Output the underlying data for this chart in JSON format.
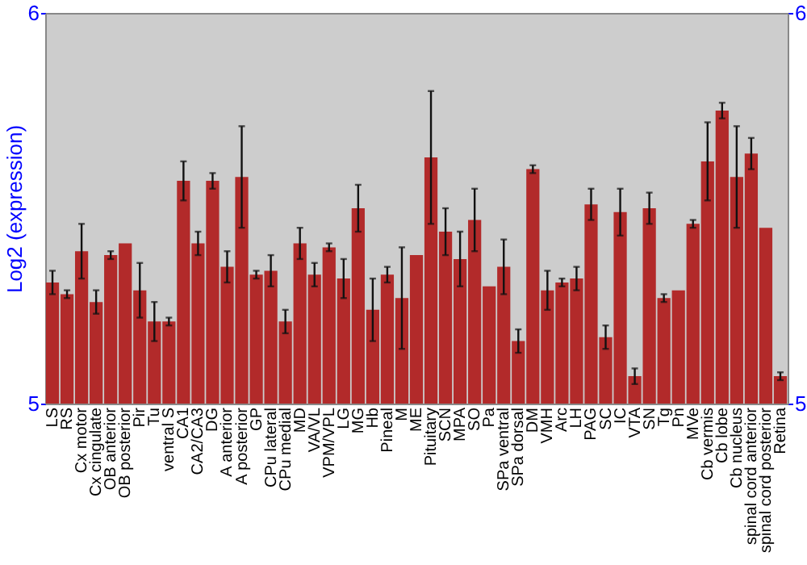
{
  "chart_data": {
    "type": "bar",
    "ylabel": "Log2 (expression)",
    "categories": [
      "LS",
      "RS",
      "Cx motor",
      "Cx cingulate",
      "OB anterior",
      "OB posterior",
      "Pir",
      "Tu",
      "ventral S",
      "CA1",
      "CA2/CA3",
      "DG",
      "A anterior",
      "A posterior",
      "GP",
      "CPu lateral",
      "CPu medial",
      "MD",
      "VA/VL",
      "VPM/VPL",
      "LG",
      "MG",
      "Hb",
      "Pineal",
      "M",
      "ME",
      "Pituitary",
      "SCN",
      "MPA",
      "SO",
      "Pa",
      "SPa ventral",
      "SPa dorsal",
      "DM",
      "VMH",
      "Arc",
      "LH",
      "PAG",
      "SC",
      "IC",
      "VTA",
      "SN",
      "Tg",
      "Pn",
      "MVe",
      "Cb vermis",
      "Cb lobe",
      "Cb nucleus",
      "spinal cord anterior",
      "spinal cord posterior",
      "Retina"
    ],
    "values": [
      5.31,
      5.28,
      5.39,
      5.26,
      5.38,
      5.41,
      5.29,
      5.21,
      5.21,
      5.57,
      5.41,
      5.57,
      5.35,
      5.58,
      5.33,
      5.34,
      5.21,
      5.41,
      5.33,
      5.4,
      5.32,
      5.5,
      5.24,
      5.33,
      5.27,
      5.38,
      5.63,
      5.44,
      5.37,
      5.47,
      5.3,
      5.35,
      5.16,
      5.6,
      5.29,
      5.31,
      5.32,
      5.51,
      5.17,
      5.49,
      5.07,
      5.5,
      5.27,
      5.29,
      5.46,
      5.62,
      5.75,
      5.58,
      5.64,
      5.45,
      5.07
    ],
    "errors": [
      0.03,
      0.01,
      0.07,
      0.03,
      0.01,
      null,
      0.07,
      0.05,
      0.01,
      0.05,
      0.03,
      0.02,
      0.04,
      0.13,
      0.01,
      0.04,
      0.03,
      0.04,
      0.03,
      0.01,
      0.05,
      0.06,
      0.08,
      0.02,
      0.13,
      null,
      0.17,
      0.06,
      0.07,
      0.08,
      null,
      0.07,
      0.03,
      0.01,
      0.05,
      0.01,
      0.03,
      0.04,
      0.03,
      0.06,
      0.02,
      0.04,
      0.01,
      null,
      0.01,
      0.1,
      0.02,
      0.13,
      0.04,
      null,
      0.01
    ],
    "color": "#b22a2a",
    "ylim": [
      5,
      6
    ],
    "yticks": [
      5,
      6
    ],
    "y2lim": [
      5,
      6
    ],
    "y2ticks": [
      5,
      6
    ],
    "grid": false
  }
}
